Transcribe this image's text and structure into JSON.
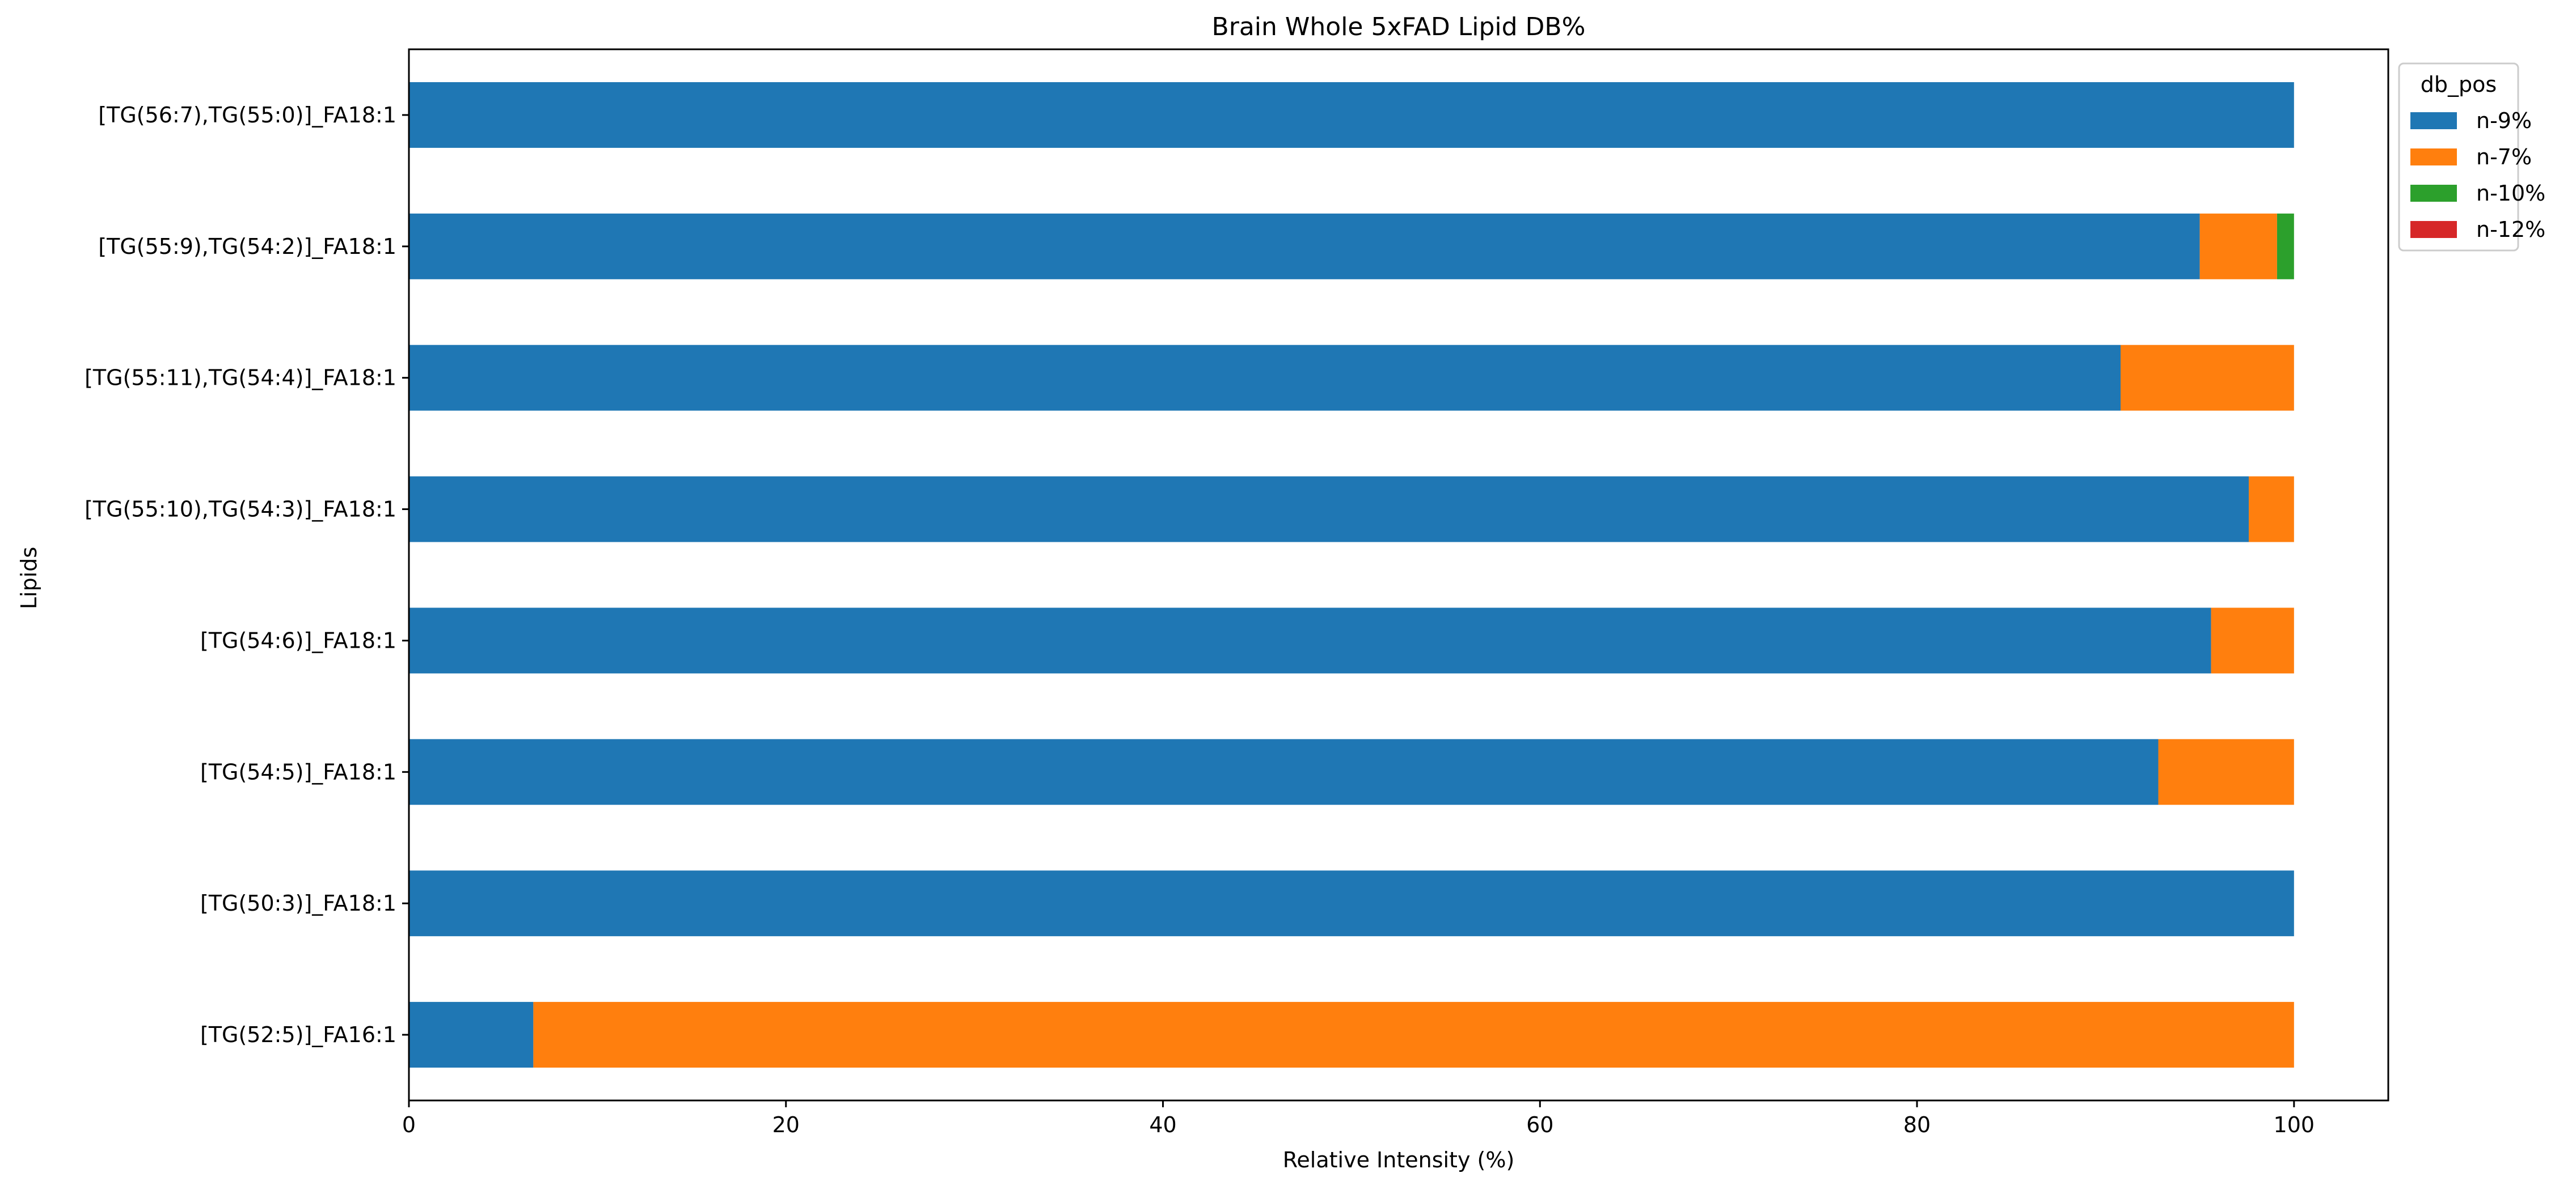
{
  "chart_data": {
    "type": "bar",
    "orientation": "horizontal",
    "stacked": true,
    "title": "Brain Whole 5xFAD Lipid DB%",
    "xlabel": "Relative Intensity (%)",
    "ylabel": "Lipids",
    "xlim": [
      0,
      105
    ],
    "xticks": [
      0,
      20,
      40,
      60,
      80,
      100
    ],
    "categories": [
      "[TG(52:5)]_FA16:1",
      "[TG(50:3)]_FA18:1",
      "[TG(54:5)]_FA18:1",
      "[TG(54:6)]_FA18:1",
      "[TG(55:10),TG(54:3)]_FA18:1",
      "[TG(55:11),TG(54:4)]_FA18:1",
      "[TG(55:9),TG(54:2)]_FA18:1",
      "[TG(56:7),TG(55:0)]_FA18:1"
    ],
    "series": [
      {
        "name": "n-9%",
        "color": "#1f77b4",
        "values": [
          6.6,
          100,
          92.8,
          95.6,
          97.6,
          90.8,
          95.0,
          100
        ]
      },
      {
        "name": "n-7%",
        "color": "#ff7f0e",
        "values": [
          93.4,
          0,
          7.2,
          4.4,
          2.4,
          9.2,
          4.1,
          0
        ]
      },
      {
        "name": "n-10%",
        "color": "#2ca02c",
        "values": [
          0,
          0,
          0,
          0,
          0,
          0,
          0.9,
          0
        ]
      },
      {
        "name": "n-12%",
        "color": "#d62728",
        "values": [
          0,
          0,
          0,
          0,
          0,
          0,
          0,
          0
        ]
      }
    ],
    "legend": {
      "title": "db_pos",
      "position": "top-right, outside plot"
    },
    "grid": false
  }
}
